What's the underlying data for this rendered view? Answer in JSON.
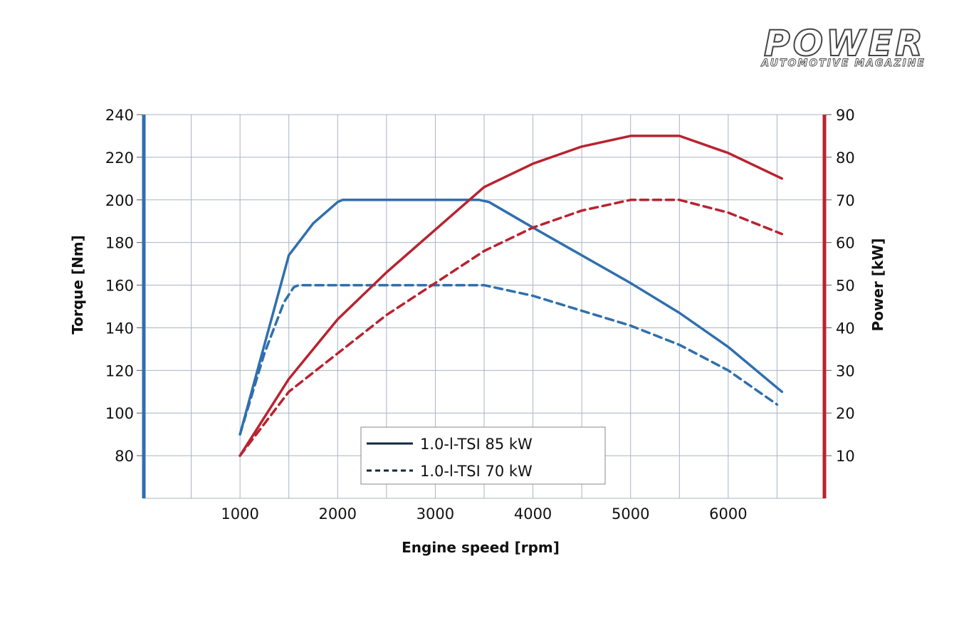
{
  "logo": {
    "title": "POWER",
    "subtitle": "AUTOMOTIVE MAGAZINE"
  },
  "colors": {
    "torque_axis": "#2f6fae",
    "power_axis": "#b8232f",
    "torque_line": "#2f6fae",
    "power_line": "#b8232f",
    "grid": "#a9b4c4"
  },
  "chart_data": {
    "type": "line",
    "xlabel": "Engine speed [rpm]",
    "ylabel": "Torque [Nm]",
    "y2label": "Power [kW]",
    "xlim": [
      0,
      7000
    ],
    "ylim": [
      60,
      240
    ],
    "y2lim": [
      0,
      90
    ],
    "xticks": [
      1000,
      2000,
      3000,
      4000,
      5000,
      6000
    ],
    "yticks": [
      80,
      100,
      120,
      140,
      160,
      180,
      200,
      220,
      240
    ],
    "y2ticks": [
      10,
      20,
      30,
      40,
      50,
      60,
      70,
      80,
      90
    ],
    "grid": true,
    "legend_position": "bottom-center",
    "legend": [
      {
        "label": "1.0-l-TSI 85 kW",
        "style": "solid"
      },
      {
        "label": "1.0-l-TSI 70 kW",
        "style": "dashed"
      }
    ],
    "series": [
      {
        "engine": "85 kW",
        "quantity": "torque",
        "axis": "left",
        "style": "solid",
        "x": [
          1000,
          1500,
          1750,
          2000,
          2050,
          3000,
          3450,
          3550,
          4000,
          4500,
          5000,
          5500,
          6000,
          6550
        ],
        "y": [
          90,
          174,
          189,
          199,
          200,
          200,
          200,
          199,
          187,
          174,
          161,
          147,
          131,
          110
        ]
      },
      {
        "engine": "70 kW",
        "quantity": "torque",
        "axis": "left",
        "style": "dashed",
        "x": [
          1000,
          1250,
          1450,
          1550,
          1600,
          2000,
          3000,
          3500,
          4000,
          4500,
          5000,
          5500,
          6000,
          6500
        ],
        "y": [
          90,
          128,
          152,
          159,
          160,
          160,
          160,
          160,
          155,
          148,
          141,
          132,
          120,
          104
        ]
      },
      {
        "engine": "85 kW",
        "quantity": "power",
        "axis": "right",
        "style": "solid",
        "x": [
          1000,
          1500,
          2000,
          2500,
          3000,
          3500,
          4000,
          4500,
          5000,
          5200,
          5500,
          6000,
          6550
        ],
        "y": [
          10,
          28,
          42,
          53,
          63,
          73,
          78.5,
          82.5,
          85,
          85,
          85,
          81,
          75
        ]
      },
      {
        "engine": "70 kW",
        "quantity": "power",
        "axis": "right",
        "style": "dashed",
        "x": [
          1000,
          1500,
          2000,
          2500,
          3000,
          3500,
          4000,
          4500,
          5000,
          5250,
          5500,
          6000,
          6550
        ],
        "y": [
          10,
          25,
          34,
          43,
          50.5,
          58,
          63.5,
          67.5,
          70,
          70,
          70,
          67,
          62
        ]
      }
    ]
  }
}
